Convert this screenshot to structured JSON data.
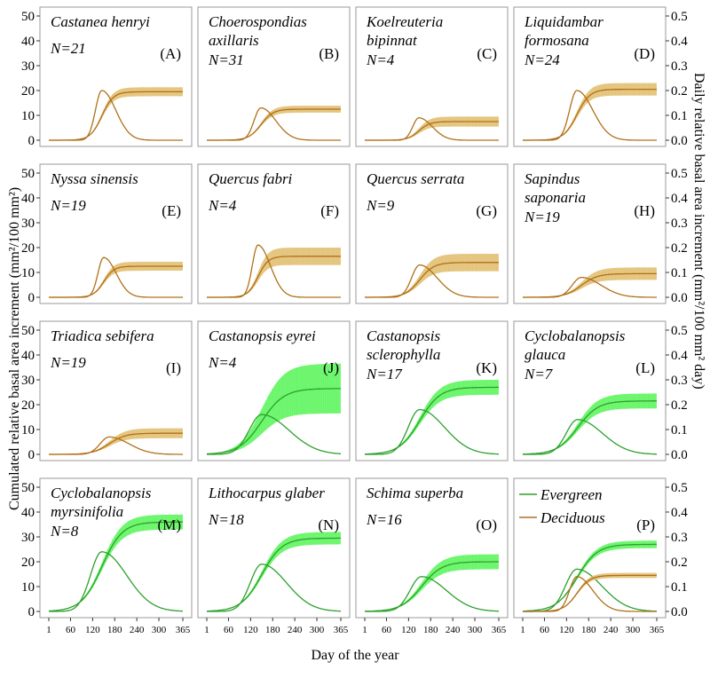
{
  "chart_data": {
    "type": "line",
    "xlabel": "Day of the year",
    "ylabel_left": "Cumulated relative basal area increment (mm²/100 mm²)",
    "ylabel_right": "Daily relative basal area increment (mm²/100 mm² day)",
    "x_ticks": [
      1,
      60,
      120,
      180,
      240,
      300,
      365
    ],
    "xlim": [
      1,
      365
    ],
    "ylim_left": [
      0,
      50
    ],
    "y_ticks_left": [
      0,
      10,
      20,
      30,
      40,
      50
    ],
    "ylim_right": [
      0,
      0.5
    ],
    "y_ticks_right": [
      "0.0",
      "0.1",
      "0.2",
      "0.3",
      "0.4",
      "0.5"
    ],
    "colors": {
      "Evergreen": "#2ca02c",
      "Deciduous": "#b0701a",
      "evergreen_band": "#5ef55e",
      "deciduous_band": "#e2bf72"
    },
    "legend": {
      "position": "top-left of panel P",
      "entries": [
        "Evergreen",
        "Deciduous"
      ]
    },
    "panels": [
      {
        "label": "(A)",
        "species": [
          "Castanea henryi"
        ],
        "n": "N=21",
        "group": "Deciduous",
        "asym": 19.5,
        "band": 1.8,
        "peak_day": 145,
        "peak_rate": 0.2,
        "spread": 28,
        "legend": false
      },
      {
        "label": "(B)",
        "species": [
          "Choerospondias",
          "axillaris"
        ],
        "n": "N=31",
        "group": "Deciduous",
        "asym": 12.5,
        "band": 1.4,
        "peak_day": 148,
        "peak_rate": 0.13,
        "spread": 30,
        "legend": false
      },
      {
        "label": "(C)",
        "species": [
          "Koelreuteria",
          "bipinnat"
        ],
        "n": "N=4",
        "group": "Deciduous",
        "asym": 7.5,
        "band": 2.0,
        "peak_day": 148,
        "peak_rate": 0.09,
        "spread": 27,
        "legend": false
      },
      {
        "label": "(D)",
        "species": [
          "Liquidambar",
          "formosana"
        ],
        "n": "N=24",
        "group": "Deciduous",
        "asym": 20.5,
        "band": 2.5,
        "peak_day": 148,
        "peak_rate": 0.2,
        "spread": 32,
        "legend": false
      },
      {
        "label": "(E)",
        "species": [
          "Nyssa sinensis"
        ],
        "n": "N=19",
        "group": "Deciduous",
        "asym": 12.5,
        "band": 1.8,
        "peak_day": 150,
        "peak_rate": 0.16,
        "spread": 25,
        "legend": false
      },
      {
        "label": "(F)",
        "species": [
          "Quercus fabri"
        ],
        "n": "N=4",
        "group": "Deciduous",
        "asym": 16.5,
        "band": 3.5,
        "peak_day": 140,
        "peak_rate": 0.21,
        "spread": 25,
        "legend": false
      },
      {
        "label": "(G)",
        "species": [
          "Quercus serrata"
        ],
        "n": "N=9",
        "group": "Deciduous",
        "asym": 14.0,
        "band": 3.5,
        "peak_day": 150,
        "peak_rate": 0.13,
        "spread": 35,
        "legend": false
      },
      {
        "label": "(H)",
        "species": [
          "Sapindus",
          "saponaria"
        ],
        "n": "N=19",
        "group": "Deciduous",
        "asym": 9.5,
        "band": 2.5,
        "peak_day": 160,
        "peak_rate": 0.08,
        "spread": 40,
        "legend": false
      },
      {
        "label": "(I)",
        "species": [
          "Triadica sebifera"
        ],
        "n": "N=19",
        "group": "Deciduous",
        "asym": 8.5,
        "band": 2.0,
        "peak_day": 165,
        "peak_rate": 0.07,
        "spread": 40,
        "legend": false
      },
      {
        "label": "(J)",
        "species": [
          "Castanopsis eyrei"
        ],
        "n": "N=4",
        "group": "Evergreen",
        "asym": 26.5,
        "band": 10.0,
        "peak_day": 150,
        "peak_rate": 0.16,
        "spread": 55,
        "legend": false
      },
      {
        "label": "(K)",
        "species": [
          "Castanopsis",
          "sclerophylla"
        ],
        "n": "N=17",
        "group": "Evergreen",
        "asym": 27.0,
        "band": 3.0,
        "peak_day": 150,
        "peak_rate": 0.18,
        "spread": 50,
        "legend": false
      },
      {
        "label": "(L)",
        "species": [
          "Cyclobalanopsis",
          "glauca"
        ],
        "n": "N=7",
        "group": "Evergreen",
        "asym": 21.5,
        "band": 3.0,
        "peak_day": 150,
        "peak_rate": 0.14,
        "spread": 50,
        "legend": false
      },
      {
        "label": "(M)",
        "species": [
          "Cyclobalanopsis",
          "myrsinifolia"
        ],
        "n": "N=8",
        "group": "Evergreen",
        "asym": 36.0,
        "band": 3.0,
        "peak_day": 145,
        "peak_rate": 0.24,
        "spread": 50,
        "legend": false
      },
      {
        "label": "(N)",
        "species": [
          "Lithocarpus glaber"
        ],
        "n": "N=18",
        "group": "Evergreen",
        "asym": 29.5,
        "band": 2.5,
        "peak_day": 150,
        "peak_rate": 0.19,
        "spread": 50,
        "legend": false
      },
      {
        "label": "(O)",
        "species": [
          "Schima superba"
        ],
        "n": "N=16",
        "group": "Evergreen",
        "asym": 20.0,
        "band": 3.0,
        "peak_day": 155,
        "peak_rate": 0.14,
        "spread": 50,
        "legend": false
      },
      {
        "label": "(P)",
        "species": [],
        "n": "",
        "group": "Both",
        "legend": true,
        "series": [
          {
            "name": "Evergreen",
            "asym": 27.0,
            "band": 1.5,
            "peak_day": 148,
            "peak_rate": 0.17,
            "spread": 50
          },
          {
            "name": "Deciduous",
            "asym": 14.5,
            "band": 1.0,
            "peak_day": 148,
            "peak_rate": 0.14,
            "spread": 32
          }
        ]
      }
    ]
  }
}
